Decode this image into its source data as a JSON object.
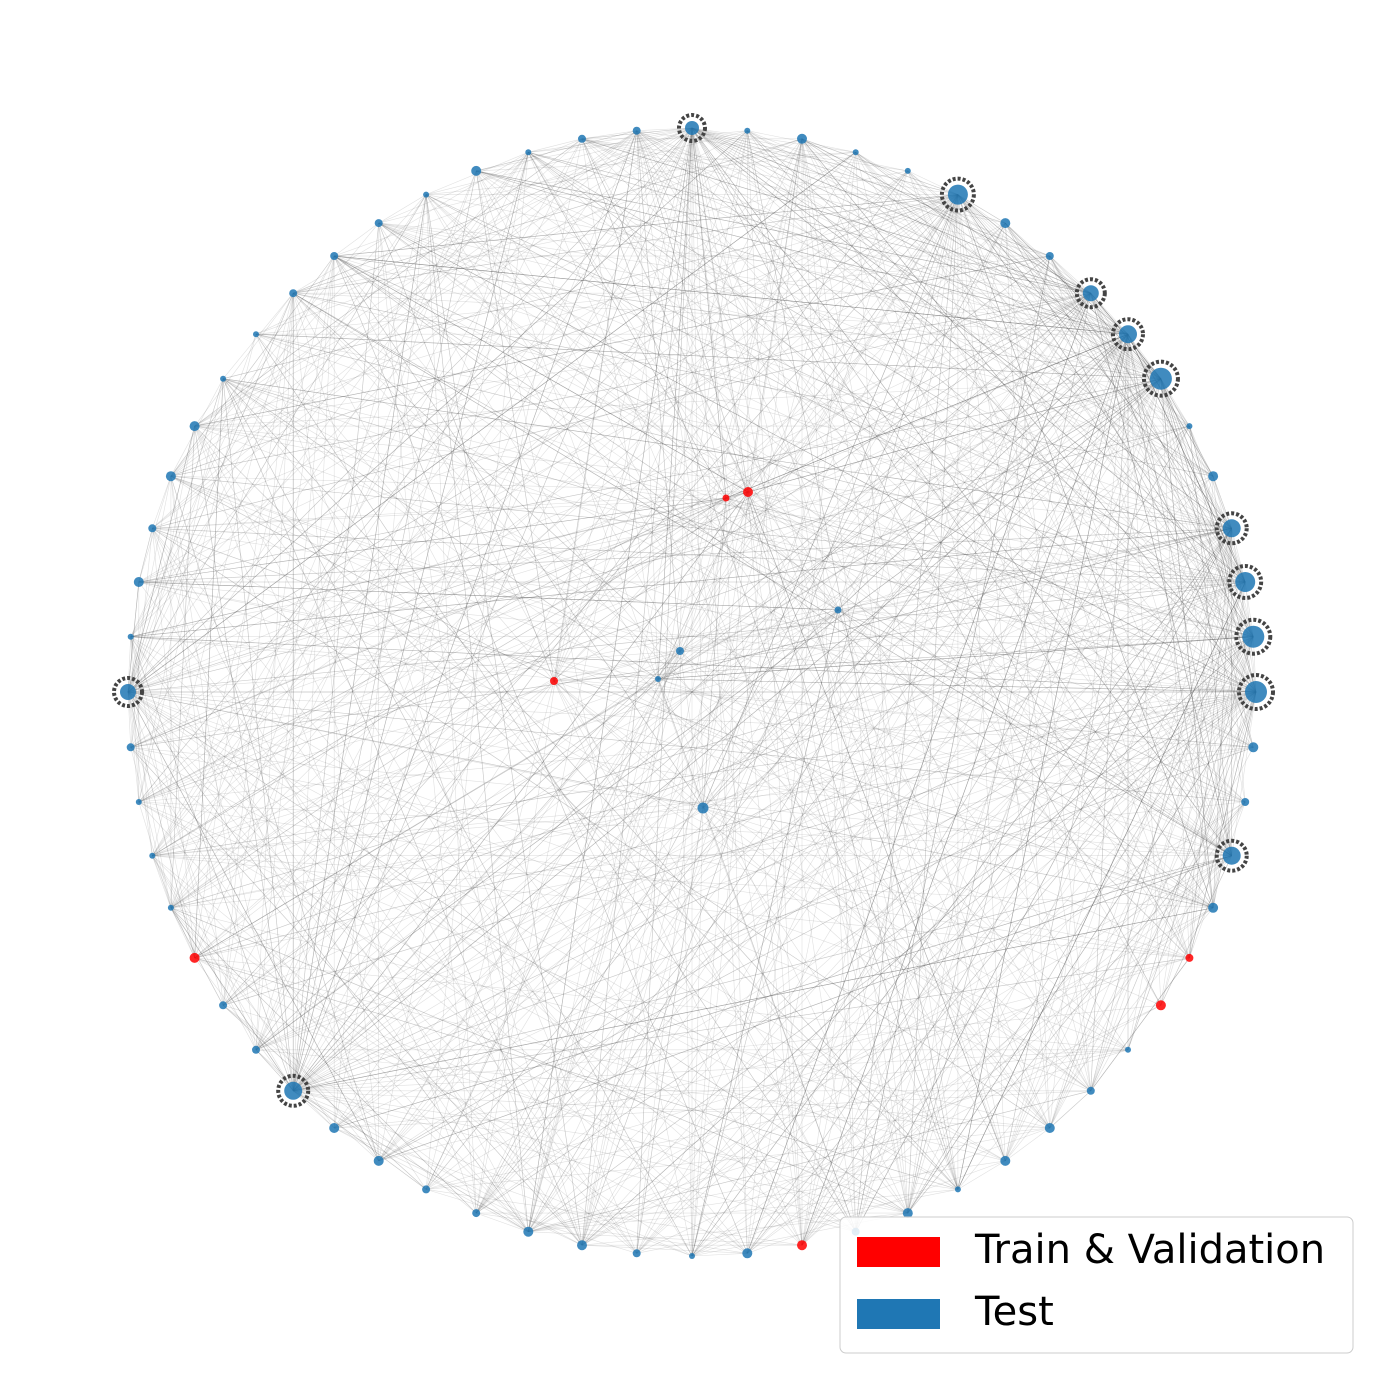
{
  "legend": {
    "entries": [
      {
        "label": "Train & Validation",
        "color": "#ff0000"
      },
      {
        "label": "Test",
        "color": "#1f77b4"
      }
    ]
  }
}
